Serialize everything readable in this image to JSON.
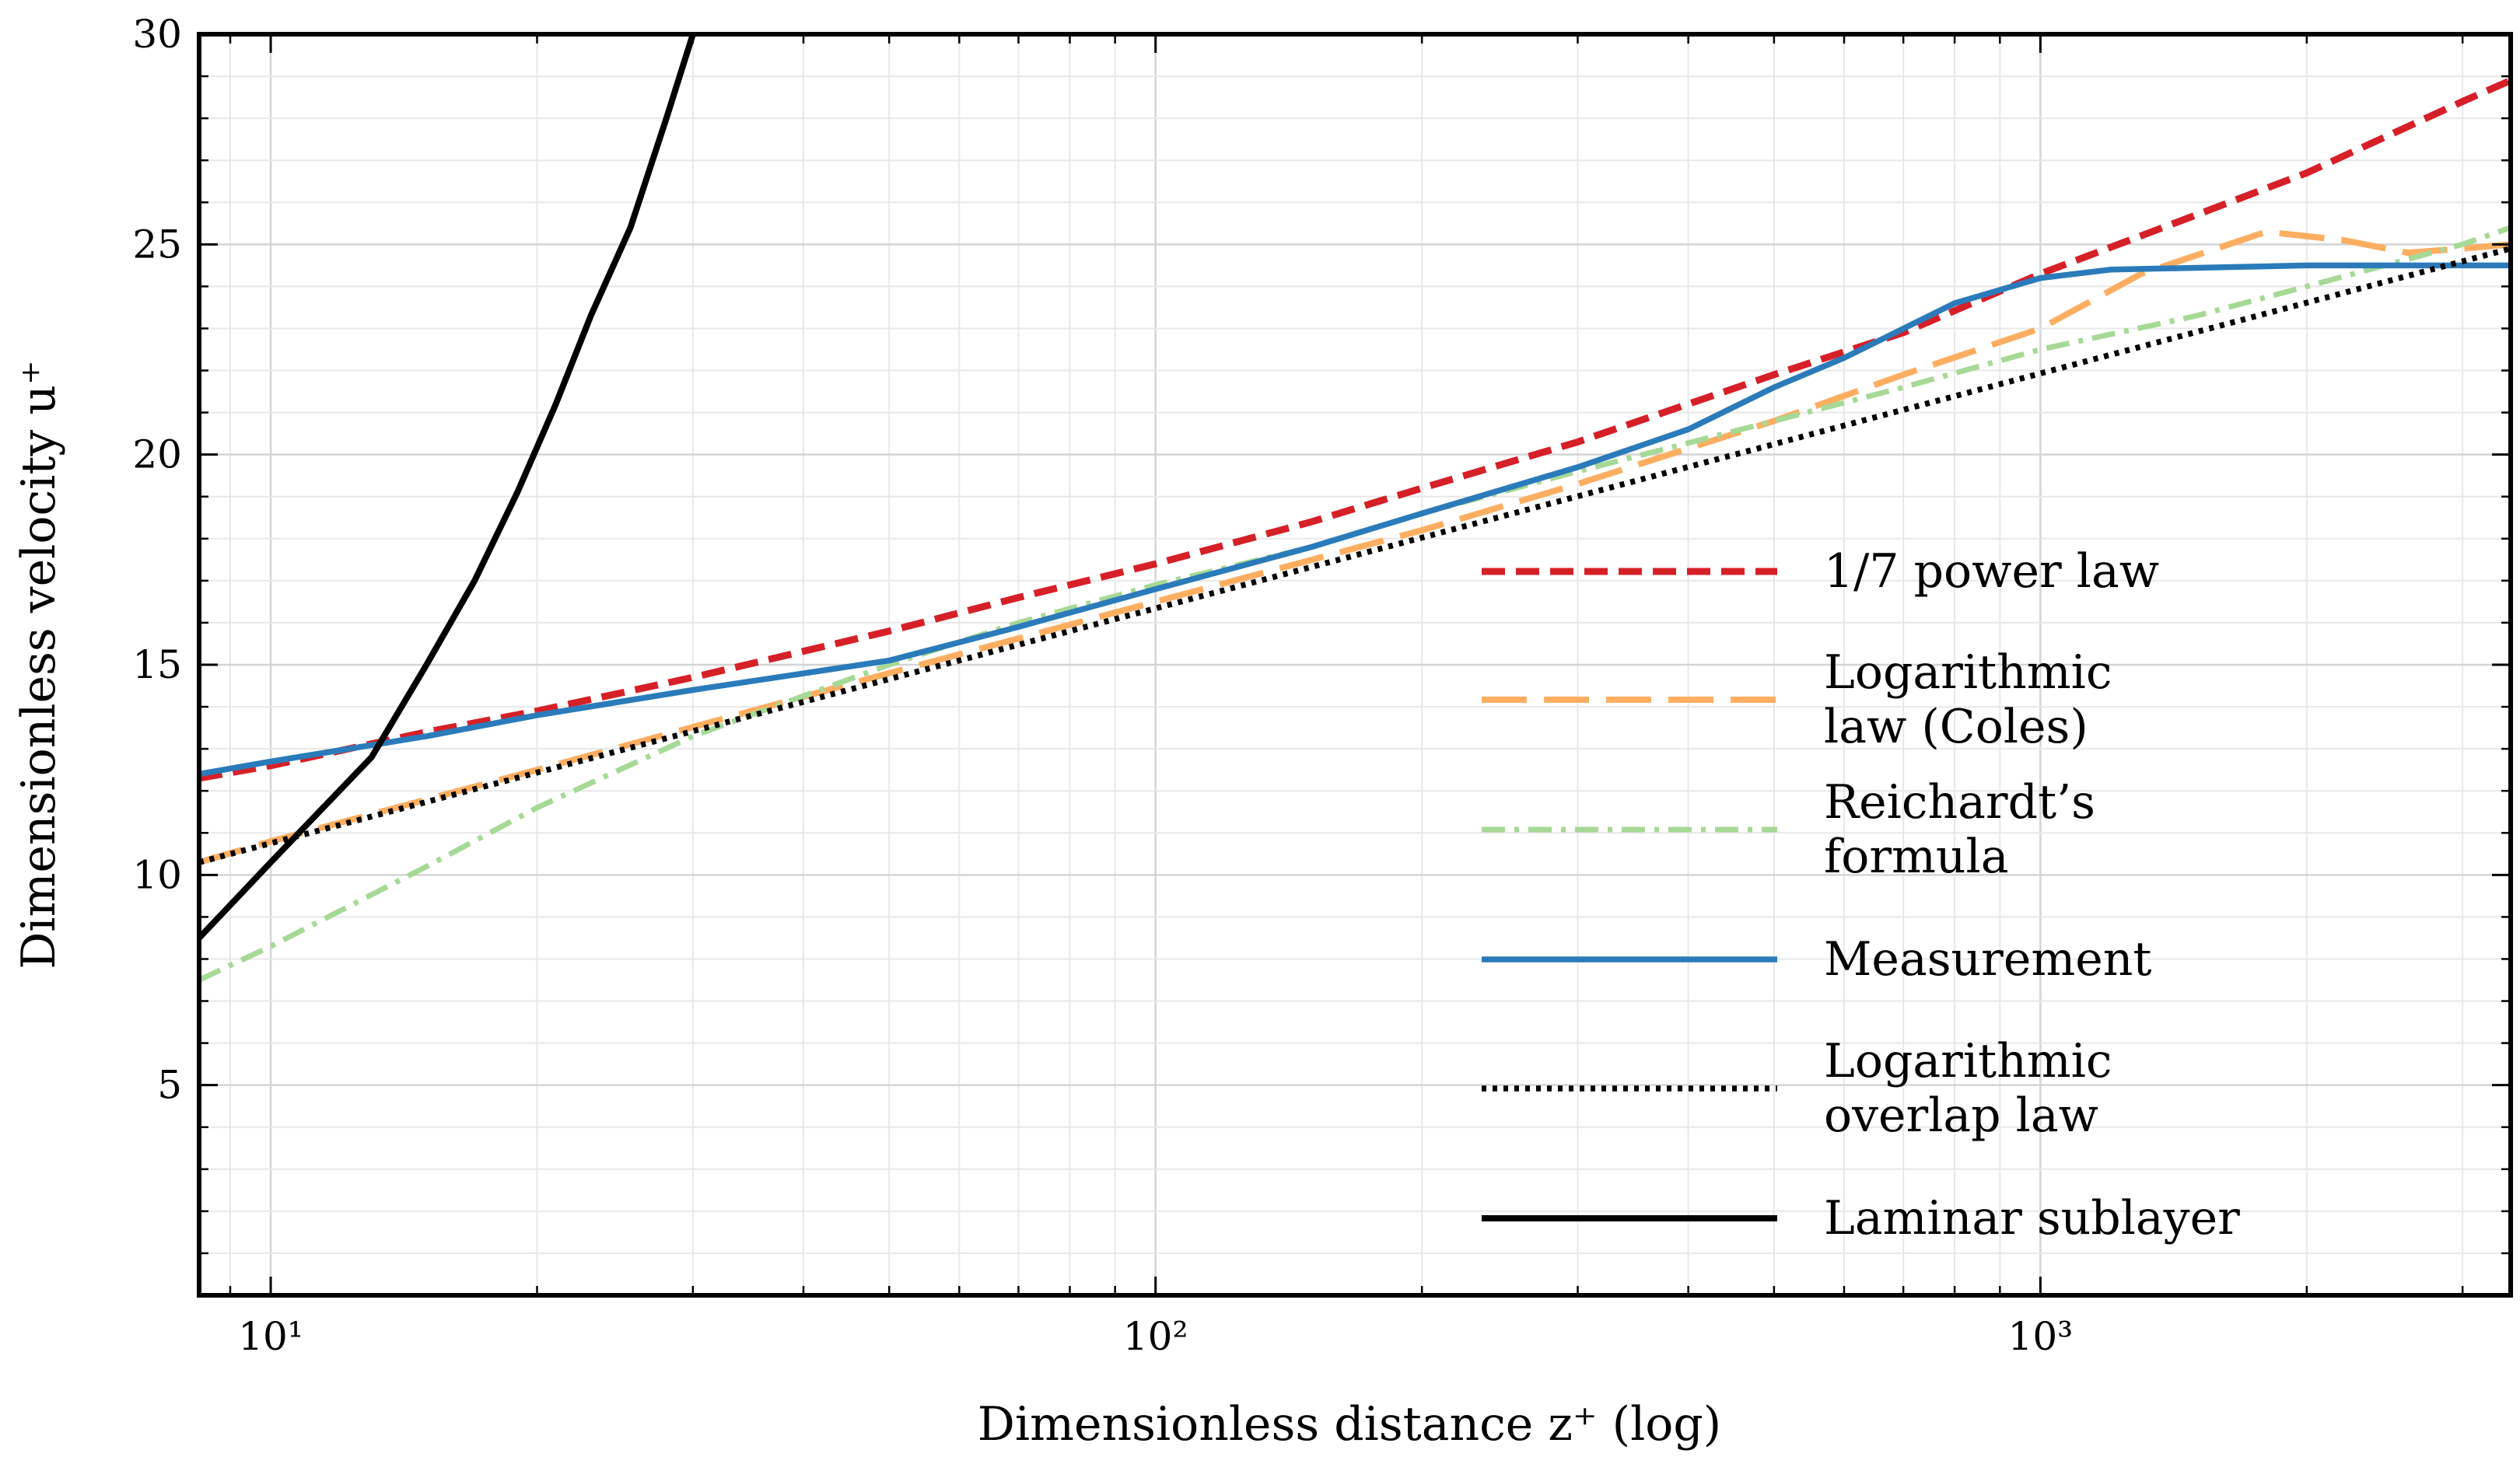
{
  "chart_data": {
    "type": "line",
    "title": "",
    "xlabel": "Dimensionless distance z⁺ (log)",
    "ylabel": "Dimensionless velocity u⁺",
    "xscale": "log",
    "xlim": [
      8.3,
      3400
    ],
    "ylim": [
      0,
      30
    ],
    "x_ticks": [
      {
        "value": 10,
        "label": "10¹"
      },
      {
        "value": 100,
        "label": "10²"
      },
      {
        "value": 1000,
        "label": "10³"
      }
    ],
    "y_ticks": [
      5,
      10,
      15,
      20,
      25,
      30
    ],
    "grid": true,
    "legend_position": "center-right",
    "series": [
      {
        "name": "1/7 power law",
        "color": "#d62027",
        "style": "dashed",
        "x": [
          8.3,
          10,
          15,
          20,
          30,
          50,
          70,
          100,
          150,
          200,
          300,
          500,
          700,
          1000,
          1500,
          2000,
          3000,
          3400
        ],
        "y": [
          12.3,
          12.6,
          13.4,
          13.9,
          14.7,
          15.8,
          16.6,
          17.4,
          18.4,
          19.2,
          20.3,
          21.9,
          22.9,
          24.3,
          25.7,
          26.7,
          28.4,
          28.9
        ]
      },
      {
        "name": "Logarithmic law (Coles)",
        "color": "#fdae61",
        "style": "longdash",
        "x": [
          8.3,
          10,
          20,
          50,
          100,
          200,
          300,
          500,
          700,
          1000,
          1300,
          1800,
          2200,
          2600,
          3000,
          3400
        ],
        "y": [
          10.3,
          10.8,
          12.5,
          14.8,
          16.5,
          18.2,
          19.3,
          20.8,
          21.9,
          23.0,
          24.3,
          25.3,
          25.1,
          24.8,
          24.9,
          25.0
        ]
      },
      {
        "name": "Reichardt’s formula",
        "color": "#a6d996",
        "style": "dashdot",
        "x": [
          8.3,
          10,
          15,
          20,
          30,
          50,
          70,
          100,
          150,
          200,
          300,
          500,
          700,
          1000,
          1500,
          2000,
          3000,
          3400
        ],
        "y": [
          7.5,
          8.3,
          10.2,
          11.6,
          13.3,
          15.0,
          16.0,
          16.9,
          17.8,
          18.6,
          19.6,
          20.8,
          21.6,
          22.5,
          23.3,
          24.0,
          25.0,
          25.4
        ]
      },
      {
        "name": "Measurement",
        "color": "#2b7bba",
        "style": "solid",
        "x": [
          8.3,
          10,
          15,
          20,
          30,
          50,
          70,
          100,
          150,
          200,
          300,
          400,
          500,
          600,
          800,
          1000,
          1200,
          2000,
          3400
        ],
        "y": [
          12.4,
          12.7,
          13.3,
          13.8,
          14.4,
          15.1,
          15.9,
          16.8,
          17.8,
          18.6,
          19.7,
          20.6,
          21.6,
          22.3,
          23.6,
          24.2,
          24.4,
          24.5,
          24.5
        ]
      },
      {
        "name": "Logarithmic overlap law",
        "color": "#000000",
        "style": "dotted",
        "x": [
          8.3,
          3400
        ],
        "y": [
          10.3,
          24.9
        ]
      },
      {
        "name": "Laminar sublayer",
        "color": "#000000",
        "style": "solid",
        "x": [
          8.3,
          10,
          13,
          15,
          17,
          19,
          21,
          23,
          25.5,
          28,
          30
        ],
        "y": [
          8.5,
          10.3,
          12.8,
          15.0,
          17.0,
          19.1,
          21.2,
          23.3,
          25.4,
          28.0,
          30.0
        ]
      }
    ],
    "legend": {
      "entries": [
        {
          "lines": [
            "1/7 power law"
          ]
        },
        {
          "lines": [
            "Logarithmic",
            "law (Coles)"
          ]
        },
        {
          "lines": [
            "Reichardt’s",
            "formula"
          ]
        },
        {
          "lines": [
            "Measurement"
          ]
        },
        {
          "lines": [
            "Logarithmic",
            "overlap law"
          ]
        },
        {
          "lines": [
            "Laminar sublayer"
          ]
        }
      ]
    }
  }
}
